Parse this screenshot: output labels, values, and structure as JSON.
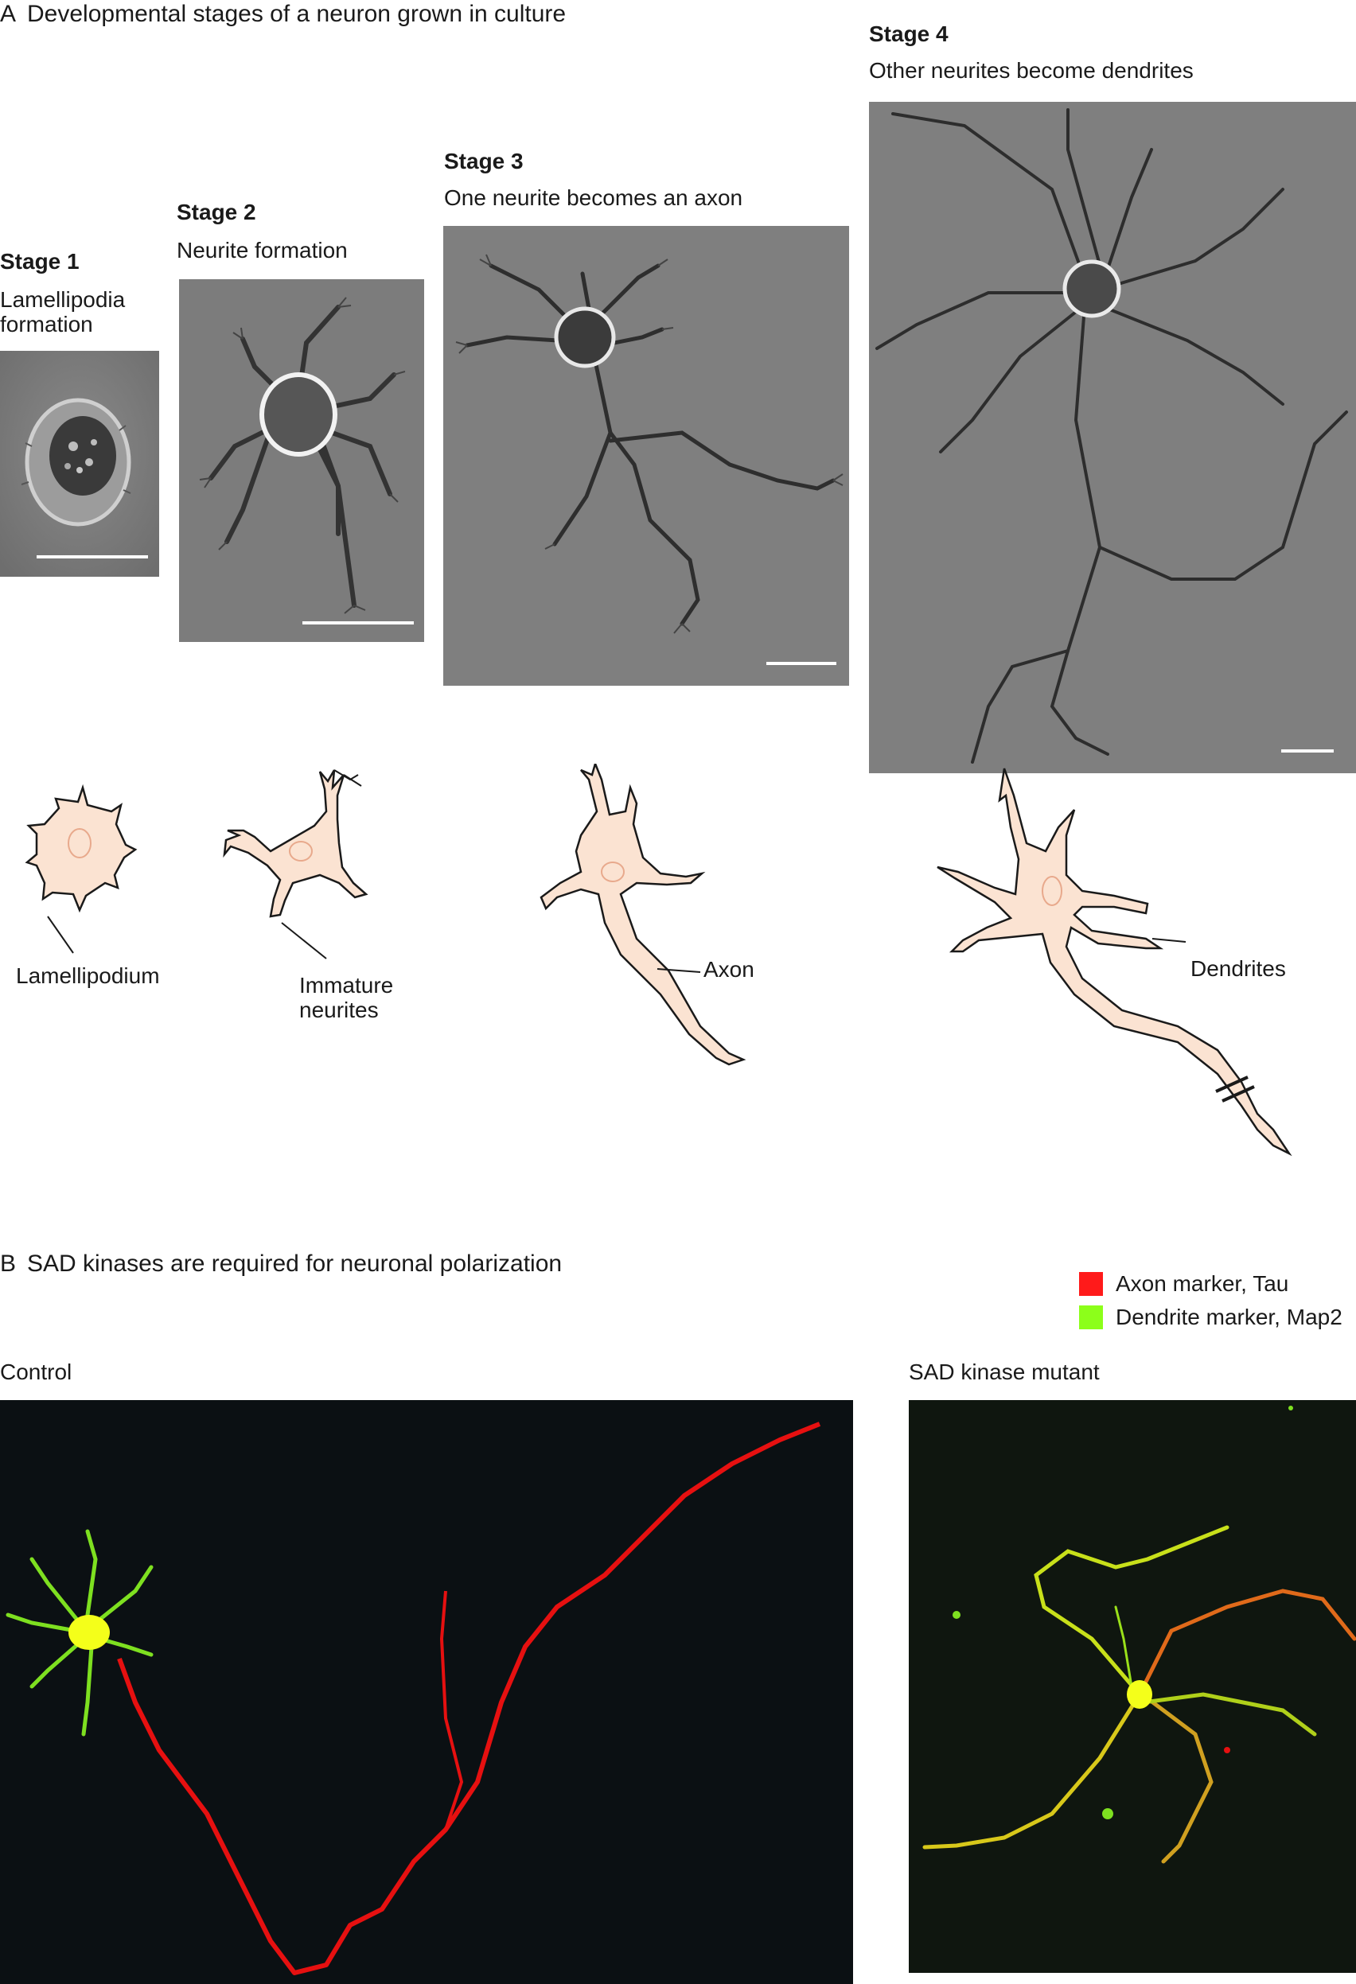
{
  "panel_a": {
    "letter": "A",
    "title": "Developmental stages of a neuron grown in culture",
    "stages": [
      {
        "label": "Stage 1",
        "desc_lines": [
          "Lamellipodia",
          "formation"
        ]
      },
      {
        "label": "Stage 2",
        "desc_lines": [
          "Neurite formation"
        ]
      },
      {
        "label": "Stage 3",
        "desc_lines": [
          "One neurite becomes an axon"
        ]
      },
      {
        "label": "Stage 4",
        "desc_lines": [
          "Other neurites become dendrites"
        ]
      }
    ],
    "diagram_labels": {
      "lamellipodium": "Lamellipodium",
      "immature_line1": "Immature",
      "immature_line2": "neurites",
      "axon": "Axon",
      "dendrites": "Dendrites"
    }
  },
  "panel_b": {
    "letter": "B",
    "title": "SAD kinases are required for neuronal polarization",
    "legend": [
      {
        "label": "Axon marker, Tau",
        "color": "#ff1a1a"
      },
      {
        "label": "Dendrite marker, Map2",
        "color": "#8cff1a"
      }
    ],
    "control_label": "Control",
    "mutant_label": "SAD kinase mutant"
  },
  "colors": {
    "phase_bg": "#7d7d7d",
    "cell_fill": "#fbe3d2",
    "nucleus": "#e8a98c",
    "fluor_bg": "#0b1013",
    "axon_red": "#e61010",
    "dendrite_green": "#7ee020",
    "soma_yellow": "#f4ff1a"
  }
}
